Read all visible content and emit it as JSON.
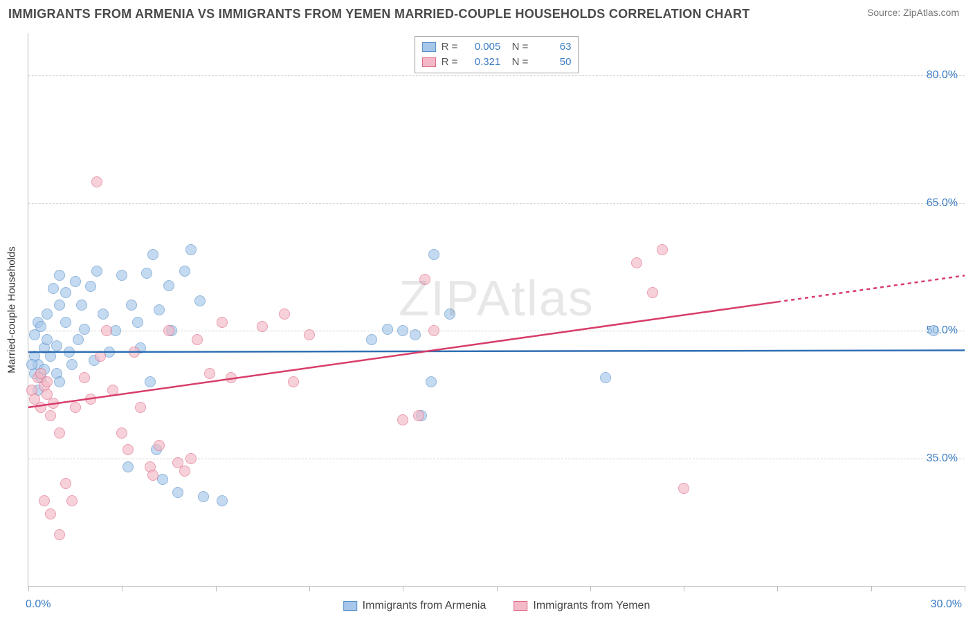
{
  "title": "IMMIGRANTS FROM ARMENIA VS IMMIGRANTS FROM YEMEN MARRIED-COUPLE HOUSEHOLDS CORRELATION CHART",
  "source": "Source: ZipAtlas.com",
  "watermark": "ZIPAtlas",
  "chart": {
    "type": "scatter",
    "background_color": "#ffffff",
    "grid_color": "#cfcfcf",
    "axis_color": "#b9b9b9",
    "label_color": "#3b7cc4",
    "label_fontsize": 16,
    "title_fontsize": 18,
    "ylabel": "Married-couple Households",
    "xlim": [
      0,
      30
    ],
    "ylim": [
      20,
      85
    ],
    "x_ticks": [
      0,
      3,
      6,
      9,
      12,
      15,
      18,
      21,
      24,
      27,
      30
    ],
    "x_tick_labels": {
      "min": "0.0%",
      "max": "30.0%"
    },
    "y_ticks": [
      35,
      50,
      65,
      80
    ],
    "y_tick_labels": [
      "35.0%",
      "50.0%",
      "65.0%",
      "80.0%"
    ],
    "marker_size": 16,
    "marker_opacity": 0.65,
    "series": [
      {
        "name": "Immigrants from Armenia",
        "fill_color": "#a6c7ea",
        "stroke_color": "#5a91c9",
        "line_color": "#2f6fb3",
        "line_width": 2.5,
        "R": "0.005",
        "N": "63",
        "trend": {
          "y_start": 47.5,
          "y_end": 47.7,
          "solid_to_x": 30
        },
        "points": [
          [
            0.2,
            49.5
          ],
          [
            0.3,
            51.0
          ],
          [
            0.5,
            48.0
          ],
          [
            0.4,
            50.5
          ],
          [
            0.6,
            52.0
          ],
          [
            0.8,
            55.0
          ],
          [
            1.0,
            53.0
          ],
          [
            1.0,
            56.5
          ],
          [
            1.2,
            54.5
          ],
          [
            1.5,
            55.8
          ],
          [
            1.2,
            51.0
          ],
          [
            0.7,
            47.0
          ],
          [
            0.9,
            45.0
          ],
          [
            0.4,
            44.5
          ],
          [
            0.2,
            45.0
          ],
          [
            0.3,
            43.0
          ],
          [
            1.3,
            47.5
          ],
          [
            1.6,
            49.0
          ],
          [
            1.8,
            50.2
          ],
          [
            2.0,
            55.2
          ],
          [
            2.2,
            57.0
          ],
          [
            1.7,
            53.0
          ],
          [
            2.4,
            52.0
          ],
          [
            2.6,
            47.5
          ],
          [
            2.8,
            50.0
          ],
          [
            3.0,
            56.5
          ],
          [
            3.3,
            53.0
          ],
          [
            3.5,
            51.0
          ],
          [
            3.6,
            48.0
          ],
          [
            3.8,
            56.8
          ],
          [
            4.0,
            59.0
          ],
          [
            4.2,
            52.5
          ],
          [
            4.5,
            55.3
          ],
          [
            4.6,
            50.0
          ],
          [
            5.0,
            57.0
          ],
          [
            5.2,
            59.5
          ],
          [
            5.5,
            53.5
          ],
          [
            3.9,
            44.0
          ],
          [
            4.3,
            32.5
          ],
          [
            5.6,
            30.5
          ],
          [
            3.2,
            34.0
          ],
          [
            4.8,
            31.0
          ],
          [
            6.2,
            30.0
          ],
          [
            4.1,
            36.0
          ],
          [
            12.0,
            50.0
          ],
          [
            12.4,
            49.5
          ],
          [
            12.6,
            40.0
          ],
          [
            12.9,
            44.0
          ],
          [
            13.0,
            59.0
          ],
          [
            11.0,
            49.0
          ],
          [
            11.5,
            50.2
          ],
          [
            13.5,
            52.0
          ],
          [
            18.5,
            44.5
          ],
          [
            29.0,
            50.0
          ],
          [
            0.3,
            46.0
          ],
          [
            0.6,
            49.0
          ],
          [
            0.9,
            48.2
          ],
          [
            1.4,
            46.0
          ],
          [
            1.0,
            44.0
          ],
          [
            0.2,
            47.0
          ],
          [
            0.5,
            45.5
          ],
          [
            0.1,
            46.0
          ],
          [
            2.1,
            46.5
          ]
        ]
      },
      {
        "name": "Immigrants from Yemen",
        "fill_color": "#f3b9c6",
        "stroke_color": "#e06a87",
        "line_color": "#d83d6a",
        "line_width": 2.5,
        "R": "0.321",
        "N": "50",
        "trend": {
          "y_start": 41.0,
          "y_end": 56.5,
          "solid_to_x": 24
        },
        "points": [
          [
            0.1,
            43.0
          ],
          [
            0.2,
            42.0
          ],
          [
            0.3,
            44.5
          ],
          [
            0.4,
            41.0
          ],
          [
            0.5,
            43.5
          ],
          [
            0.6,
            42.5
          ],
          [
            0.7,
            40.0
          ],
          [
            0.8,
            41.5
          ],
          [
            0.4,
            45.0
          ],
          [
            0.6,
            44.0
          ],
          [
            1.0,
            38.0
          ],
          [
            1.2,
            32.0
          ],
          [
            1.4,
            30.0
          ],
          [
            1.0,
            26.0
          ],
          [
            0.7,
            28.5
          ],
          [
            0.5,
            30.0
          ],
          [
            1.5,
            41.0
          ],
          [
            1.8,
            44.5
          ],
          [
            2.0,
            42.0
          ],
          [
            2.3,
            47.0
          ],
          [
            2.2,
            67.5
          ],
          [
            2.5,
            50.0
          ],
          [
            2.7,
            43.0
          ],
          [
            3.0,
            38.0
          ],
          [
            3.2,
            36.0
          ],
          [
            3.4,
            47.5
          ],
          [
            3.6,
            41.0
          ],
          [
            3.9,
            34.0
          ],
          [
            4.0,
            33.0
          ],
          [
            4.2,
            36.5
          ],
          [
            4.5,
            50.0
          ],
          [
            4.8,
            34.5
          ],
          [
            5.0,
            33.5
          ],
          [
            5.2,
            35.0
          ],
          [
            5.4,
            49.0
          ],
          [
            5.8,
            45.0
          ],
          [
            6.2,
            51.0
          ],
          [
            6.5,
            44.5
          ],
          [
            7.5,
            50.5
          ],
          [
            8.2,
            52.0
          ],
          [
            8.5,
            44.0
          ],
          [
            9.0,
            49.5
          ],
          [
            12.0,
            39.5
          ],
          [
            12.5,
            40.0
          ],
          [
            12.7,
            56.0
          ],
          [
            13.0,
            50.0
          ],
          [
            19.5,
            58.0
          ],
          [
            20.0,
            54.5
          ],
          [
            21.0,
            31.5
          ],
          [
            20.3,
            59.5
          ]
        ]
      }
    ]
  }
}
